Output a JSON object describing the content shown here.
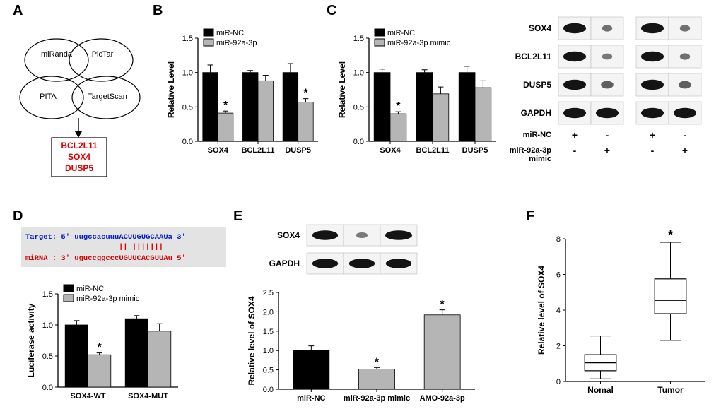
{
  "panelLabels": {
    "A": "A",
    "B": "B",
    "C": "C",
    "D": "D",
    "E": "E",
    "F": "F"
  },
  "colors": {
    "black": "#000000",
    "grey": "#b5b5b5",
    "bg": "#ffffff",
    "blotBand": "#1a1a1a",
    "blotBg": "#f4f4f4",
    "vennFill": "#ffffff",
    "vennStroke": "#000000",
    "targetsRed": "#d60000",
    "seqBg": "#e3e3e3",
    "seqBlue": "#0020c2",
    "seqRed": "#d60000",
    "asterisk": "#000000",
    "boxFill": "#ffffff"
  },
  "venn": {
    "labels": [
      "miRanda",
      "PicTar",
      "PITA",
      "TargetScan"
    ],
    "targets": [
      "BCL2L11",
      "SOX4",
      "DUSP5"
    ]
  },
  "chartB": {
    "type": "bar",
    "ylabel": "Relative Level",
    "ylim": [
      0,
      1.5
    ],
    "yticks": [
      0.0,
      0.5,
      1.0,
      1.5
    ],
    "legend": [
      "miR-NC",
      "miR-92a-3p"
    ],
    "legend_colors": [
      "#000000",
      "#b5b5b5"
    ],
    "categories": [
      "SOX4",
      "BCL2L11",
      "DUSP5"
    ],
    "series": [
      {
        "name": "miR-NC",
        "color": "#000000",
        "values": [
          1.0,
          1.0,
          1.0
        ],
        "errors": [
          0.11,
          0.03,
          0.13
        ]
      },
      {
        "name": "miR-92a-3p",
        "color": "#b5b5b5",
        "values": [
          0.41,
          0.88,
          0.57
        ],
        "errors": [
          0.03,
          0.08,
          0.05
        ]
      }
    ],
    "sig": [
      {
        "cat": "SOX4",
        "series": 1,
        "label": "*"
      },
      {
        "cat": "DUSP5",
        "series": 1,
        "label": "*"
      }
    ],
    "bar_width": 0.38,
    "label_fontsize": 11,
    "tick_fontsize": 11
  },
  "chartC": {
    "type": "bar",
    "ylabel": "Relative Level",
    "ylim": [
      0,
      1.5
    ],
    "yticks": [
      0.0,
      0.5,
      1.0,
      1.5
    ],
    "legend": [
      "miR-NC",
      "miR-92a-3p mimic"
    ],
    "legend_colors": [
      "#000000",
      "#b5b5b5"
    ],
    "categories": [
      "SOX4",
      "BCL2L11",
      "DUSP5"
    ],
    "series": [
      {
        "name": "miR-NC",
        "color": "#000000",
        "values": [
          1.0,
          1.0,
          1.0
        ],
        "errors": [
          0.05,
          0.04,
          0.09
        ]
      },
      {
        "name": "miR-92a-3p mimic",
        "color": "#b5b5b5",
        "values": [
          0.4,
          0.69,
          0.78
        ],
        "errors": [
          0.03,
          0.1,
          0.1
        ]
      }
    ],
    "sig": [
      {
        "cat": "SOX4",
        "series": 1,
        "label": "*"
      }
    ],
    "bar_width": 0.38
  },
  "westernC": {
    "proteins": [
      "SOX4",
      "BCL2L11",
      "DUSP5",
      "GAPDH"
    ],
    "groups": 2,
    "lanesPerGroup": 2,
    "laneLabels": {
      "row1": "miR-NC",
      "row2": "miR-92a-3p\nmimic",
      "pattern": [
        [
          "+",
          "-"
        ],
        [
          "+",
          "-"
        ],
        [
          "-",
          "+"
        ],
        [
          "-",
          "+"
        ]
      ]
    },
    "intensity": [
      [
        [
          1.0,
          0.45
        ],
        [
          1.0,
          0.45
        ]
      ],
      [
        [
          1.0,
          0.4
        ],
        [
          1.0,
          0.45
        ]
      ],
      [
        [
          1.0,
          0.55
        ],
        [
          1.0,
          0.55
        ]
      ],
      [
        [
          1.0,
          1.0
        ],
        [
          1.0,
          1.0
        ]
      ]
    ],
    "band_color": "#1a1a1a",
    "panel_bg": "#f4f4f4"
  },
  "panelD": {
    "seq": {
      "targetLabel": "Target:",
      "target5": "5'",
      "targetSeq": "uugccacuuuACUUGUGCAAUa",
      "target3": "3'",
      "match": "||  |||||||",
      "mirnaLabel": "miRNA :",
      "mirna3": "3'",
      "mirnaSeq": "uguccggcccUGUUCACGUUAu",
      "mirna5": "5'"
    },
    "chart": {
      "type": "bar",
      "ylabel": "Luciferase activity",
      "ylim": [
        0,
        1.5
      ],
      "yticks": [
        0.0,
        0.5,
        1.0,
        1.5
      ],
      "legend": [
        "miR-NC",
        "miR-92a-3p mimic"
      ],
      "legend_colors": [
        "#000000",
        "#b5b5b5"
      ],
      "categories": [
        "SOX4-WT",
        "SOX4-MUT"
      ],
      "series": [
        {
          "name": "miR-NC",
          "color": "#000000",
          "values": [
            1.0,
            1.1
          ],
          "errors": [
            0.07,
            0.05
          ]
        },
        {
          "name": "miR-92a-3p mimic",
          "color": "#b5b5b5",
          "values": [
            0.52,
            0.9
          ],
          "errors": [
            0.03,
            0.12
          ]
        }
      ],
      "sig": [
        {
          "cat": "SOX4-WT",
          "series": 1,
          "label": "*"
        }
      ],
      "bar_width": 0.38
    }
  },
  "panelE": {
    "western": {
      "proteins": [
        "SOX4",
        "GAPDH"
      ],
      "lanes": 3,
      "intensity": [
        [
          1.0,
          0.4,
          1.05
        ],
        [
          1.0,
          1.0,
          1.0
        ]
      ],
      "band_color": "#1a1a1a",
      "panel_bg": "#f4f4f4"
    },
    "chart": {
      "type": "bar",
      "ylabel": "Relative level of SOX4",
      "ylim": [
        0,
        2.5
      ],
      "yticks": [
        0.0,
        0.5,
        1.0,
        1.5,
        2.0,
        2.5
      ],
      "categories": [
        "miR-NC",
        "miR-92a-3p mimic",
        "AMO-92a-3p"
      ],
      "colors": [
        "#000000",
        "#b5b5b5",
        "#b5b5b5"
      ],
      "values": [
        1.0,
        0.52,
        1.92
      ],
      "errors": [
        0.12,
        0.04,
        0.13
      ],
      "sig": [
        {
          "cat": "miR-92a-3p mimic",
          "label": "*"
        },
        {
          "cat": "AMO-92a-3p",
          "label": "*"
        }
      ],
      "bar_width": 0.55
    }
  },
  "panelF": {
    "type": "boxplot",
    "ylabel": "Relative level of SOX4",
    "ylim": [
      0,
      8
    ],
    "yticks": [
      0,
      2,
      4,
      6,
      8
    ],
    "categories": [
      "Nomal",
      "Tumor"
    ],
    "boxes": [
      {
        "min": 0.15,
        "q1": 0.6,
        "median": 1.05,
        "q3": 1.5,
        "max": 2.55,
        "fill": "#ffffff"
      },
      {
        "min": 2.3,
        "q1": 3.8,
        "median": 4.55,
        "q3": 5.75,
        "max": 7.8,
        "fill": "#ffffff"
      }
    ],
    "sig": [
      {
        "cat": "Tumor",
        "label": "*"
      }
    ],
    "box_width": 0.45
  }
}
